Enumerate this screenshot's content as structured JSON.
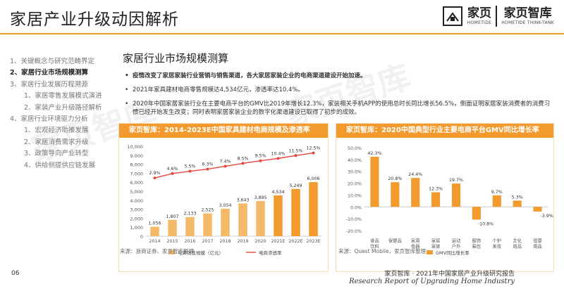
{
  "page": {
    "title": "家居产业升级动因解析",
    "page_number": "06"
  },
  "brand": {
    "logo_cn_1": "家页",
    "logo_en_1": "HOMETIDE",
    "logo_cn_2": "家页智库",
    "logo_en_2": "HOMETIDE THINK-TANK",
    "watermark": "家页智库",
    "accent": "#f29a2e",
    "bar_light": "#f5b96a",
    "line_red": "#e8453c"
  },
  "toc": [
    "1、关键概念与研究范畴界定",
    "2、家居行业市场规模测算",
    "3、家居行业发展历程溯源",
    "1、家居零售发展模式演进",
    "2、家装产业升级路径解析",
    "4、家居行业环境驱力分析",
    "1、宏观经济助推发展",
    "2、家居消费需求升级",
    "3、政策导向产业转型",
    "4、供给侧提供应链发展"
  ],
  "section": {
    "title": "家居行业市场规模测算",
    "bullets": [
      "疫情改变了家居家装行业营销与销售渠道，各大家居家装企业的电商渠道建设开始加速。",
      "2021年家具建材电商零售规模达4,534亿元，渗透率达10.4%。",
      "2020年中国家居家装行业在主要电商平台的GMV比2019年增长12.3%，家装相关手机APP的使用总时长同比增长56.5%，侧面证明家居家装消费者的消费习惯已经开始发生改变；同时表明家居家装企业的数字化渠道建设已取得了初步的成效。"
    ]
  },
  "chart_data": [
    {
      "type": "bar",
      "title": "家页智库：2014-2023E中国家具建材电商规模及渗透率",
      "categories": [
        "2014",
        "2015",
        "2016",
        "2017",
        "2018",
        "2019",
        "2020",
        "2021E",
        "2022E",
        "2023E"
      ],
      "series": [
        {
          "name": "电商销售规模（亿元）",
          "kind": "bar",
          "axis": "left",
          "values": [
            1056,
            1807,
            2133,
            2525,
            3054,
            3643,
            3895,
            4534,
            5249,
            6006
          ],
          "labels": [
            "1,056",
            "1,807",
            "2,133",
            "2,525",
            "3,054",
            "3,643",
            "3,895",
            "4,534",
            "5,249",
            "6,006"
          ]
        },
        {
          "name": "电商渗透率",
          "kind": "line",
          "axis": "right",
          "values": [
            2.9,
            4.6,
            5.5,
            6.3,
            7.4,
            8.5,
            9.5,
            10.4,
            11.5,
            12.5
          ],
          "labels": [
            "2.9%",
            "4.6%",
            "5.5%",
            "6.3%",
            "7.4%",
            "8.5%",
            "9.5%",
            "10.4%",
            "11.5%",
            "12.5%"
          ]
        }
      ],
      "ylim": [
        0,
        10000
      ],
      "yticks": [
        "0",
        "1,000",
        "2,000",
        "3,000",
        "4,000",
        "5,000",
        "6,000",
        "7,000",
        "8,000",
        "9,000",
        "10,000"
      ],
      "y2lim": [
        0,
        14
      ],
      "source": "来源：浙商证券、家页智库整理"
    },
    {
      "type": "bar",
      "title": "家页智库：2020中国典型行业主要电商平台GMV同比增长率",
      "categories": [
        "食品\n饮料",
        "保健品",
        "家用\n电器",
        "家居\n家装",
        "运动\n户外",
        "服饰\n箱包",
        "个护\n美妆",
        "文化\n用品",
        "母婴\n用品"
      ],
      "series": [
        {
          "name": "GMV同比增长率",
          "values": [
            42.3,
            20.8,
            24.4,
            12.3,
            19.7,
            -10.8,
            9.7,
            5.3,
            -3.9
          ],
          "labels": [
            "42.3%",
            "20.8%",
            "24.4%",
            "12.3%",
            "19.7%",
            "-10.8%",
            "9.7%",
            "5.3%",
            "-3.9%"
          ]
        }
      ],
      "ylim": [
        -20,
        50
      ],
      "yticks": [
        "-20.0%",
        "-10.0%",
        "0.0%",
        "10.0%",
        "20.0%",
        "30.0%",
        "40.0%",
        "50.0%"
      ],
      "source": "来源：Quest Mobile，家页智库整理"
    }
  ],
  "footer": {
    "cn": "家页智库 · 2021年中国家居产业升级研究报告",
    "en": "Research Report of Upgrading Home Industry"
  }
}
